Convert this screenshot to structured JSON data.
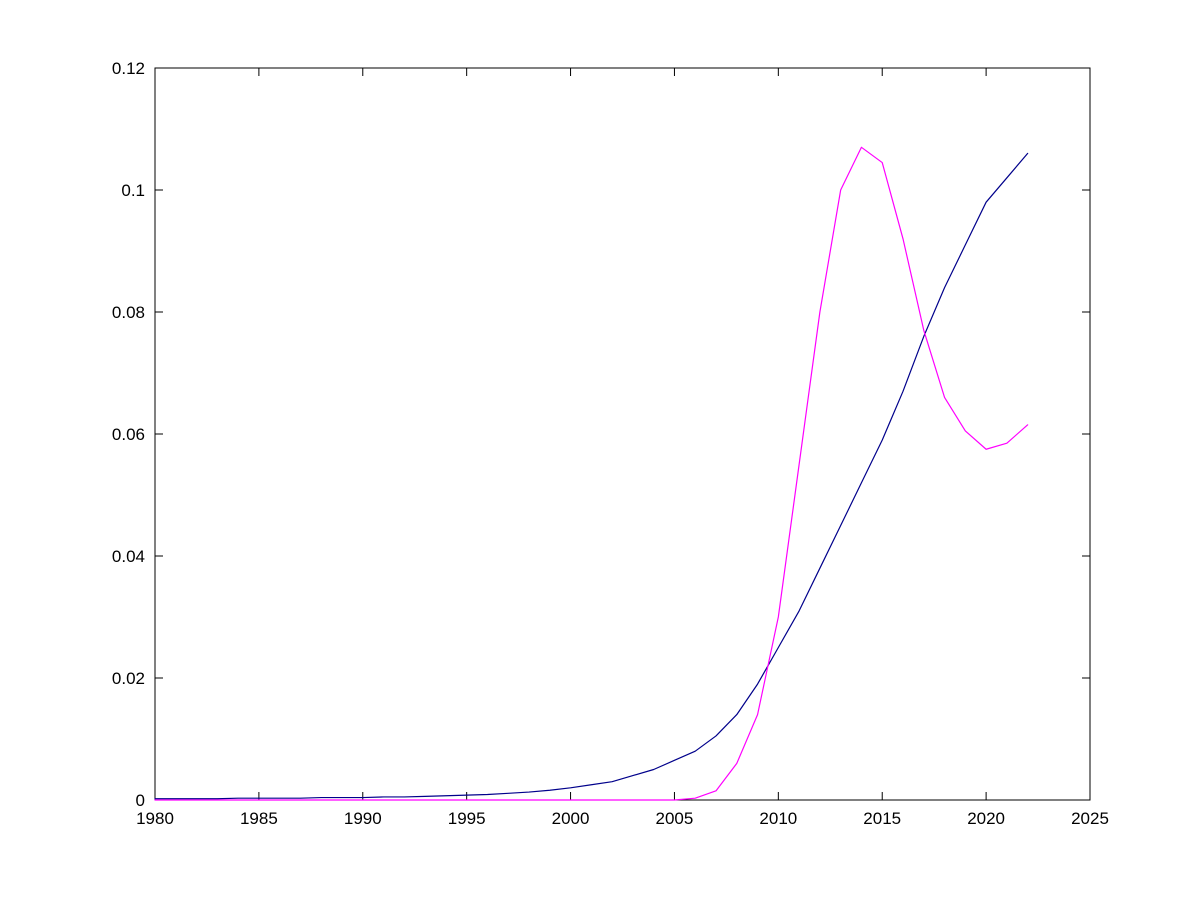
{
  "figure": {
    "background": "#ffffff",
    "title": ""
  },
  "chart_data": {
    "type": "line",
    "title": "",
    "xlabel": "",
    "ylabel": "",
    "grid": false,
    "legend": null,
    "xlim": [
      1980,
      2025
    ],
    "ylim": [
      0,
      0.12
    ],
    "xticks": [
      1980,
      1985,
      1990,
      1995,
      2000,
      2005,
      2010,
      2015,
      2020,
      2025
    ],
    "xtick_labels": [
      "1980",
      "1985",
      "1990",
      "1995",
      "2000",
      "2005",
      "2010",
      "2015",
      "2020",
      "2025"
    ],
    "yticks": [
      0,
      0.02,
      0.04,
      0.06,
      0.08,
      0.1,
      0.12
    ],
    "ytick_labels": [
      "0",
      "0.02",
      "0.04",
      "0.06",
      "0.08",
      "0.1",
      "0.12"
    ],
    "x": [
      1980,
      1981,
      1982,
      1983,
      1984,
      1985,
      1986,
      1987,
      1988,
      1989,
      1990,
      1991,
      1992,
      1993,
      1994,
      1995,
      1996,
      1997,
      1998,
      1999,
      2000,
      2001,
      2002,
      2003,
      2004,
      2005,
      2006,
      2007,
      2008,
      2009,
      2010,
      2011,
      2012,
      2013,
      2014,
      2015,
      2016,
      2017,
      2018,
      2019,
      2020,
      2021,
      2022
    ],
    "series": [
      {
        "name": "dark-blue-line",
        "color": "#00008B",
        "values": [
          0.0002,
          0.0002,
          0.0002,
          0.0002,
          0.0003,
          0.0003,
          0.0003,
          0.0003,
          0.0004,
          0.0004,
          0.0004,
          0.0005,
          0.0005,
          0.0006,
          0.0007,
          0.0008,
          0.0009,
          0.0011,
          0.0013,
          0.0016,
          0.002,
          0.0025,
          0.003,
          0.004,
          0.005,
          0.0065,
          0.008,
          0.0105,
          0.014,
          0.019,
          0.025,
          0.031,
          0.038,
          0.045,
          0.052,
          0.059,
          0.067,
          0.076,
          0.084,
          0.091,
          0.098,
          0.102,
          0.106
        ]
      },
      {
        "name": "magenta-line",
        "color": "#FF00FF",
        "values": [
          0,
          0,
          0,
          0,
          0,
          0,
          0,
          0,
          0,
          0,
          0,
          0,
          0,
          0,
          0,
          0,
          0,
          0,
          0,
          0,
          0,
          0,
          0,
          0,
          0,
          0,
          0.0003,
          0.0015,
          0.006,
          0.014,
          0.03,
          0.055,
          0.08,
          0.1,
          0.107,
          0.1045,
          0.092,
          0.077,
          0.066,
          0.0605,
          0.0575,
          0.0585,
          0.0615
        ]
      }
    ]
  }
}
